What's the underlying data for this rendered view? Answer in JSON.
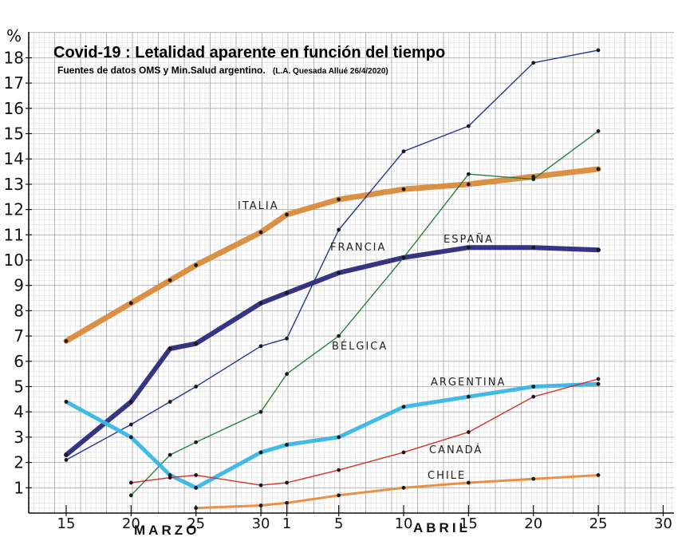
{
  "chart_data": {
    "type": "line",
    "title": "Covid-19 : Letalidad aparente en función del tiempo",
    "subtitle": "Fuentes de datos OMS y Min.Salud argentino.",
    "author_note": "(L.A. Quesada Allué 26/4/2020)",
    "ylabel": "%",
    "ylim": [
      0,
      18
    ],
    "yticks": [
      "1",
      "2",
      "3",
      "4",
      "5",
      "6",
      "7",
      "8",
      "9",
      "10",
      "11",
      "12",
      "13",
      "14",
      "15",
      "16",
      "17",
      "18"
    ],
    "xticks": [
      "15",
      "20",
      "25",
      "30",
      "1",
      "5",
      "10",
      "15",
      "20",
      "25",
      "30"
    ],
    "month_labels": [
      "MARZO",
      "ABRIL"
    ],
    "grid": true,
    "series": [
      {
        "name": "ITALIA",
        "color": "#d98a3a",
        "width": 7,
        "x": [
          "Mar 15",
          "Mar 20",
          "Mar 23",
          "Mar 25",
          "Mar 30",
          "Apr 1",
          "Apr 5",
          "Apr 10",
          "Apr 15",
          "Apr 20",
          "Apr 25"
        ],
        "values": [
          6.8,
          8.3,
          9.2,
          9.8,
          11.1,
          11.8,
          12.4,
          12.8,
          13.0,
          13.3,
          13.6
        ]
      },
      {
        "name": "ESPAÑA",
        "color": "#2b2a7c",
        "width": 6,
        "x": [
          "Mar 15",
          "Mar 20",
          "Mar 23",
          "Mar 25",
          "Mar 30",
          "Apr 1",
          "Apr 5",
          "Apr 10",
          "Apr 15",
          "Apr 20",
          "Apr 25"
        ],
        "values": [
          2.3,
          4.4,
          6.5,
          6.7,
          8.3,
          8.7,
          9.5,
          10.1,
          10.5,
          10.5,
          10.4
        ]
      },
      {
        "name": "FRANCIA",
        "color": "#1a2a8c",
        "width": 1.4,
        "x": [
          "Mar 15",
          "Mar 20",
          "Mar 23",
          "Mar 25",
          "Mar 30",
          "Apr 1",
          "Apr 5",
          "Apr 10",
          "Apr 15",
          "Apr 20",
          "Apr 25"
        ],
        "values": [
          2.1,
          3.5,
          4.4,
          5.0,
          6.6,
          6.9,
          11.2,
          14.3,
          15.3,
          17.8,
          18.3
        ]
      },
      {
        "name": "BÉLGICA",
        "color": "#1e7a3a",
        "width": 1.4,
        "x": [
          "Mar 20",
          "Mar 23",
          "Mar 25",
          "Mar 30",
          "Apr 1",
          "Apr 5",
          "Apr 10",
          "Apr 15",
          "Apr 20",
          "Apr 25"
        ],
        "values": [
          0.7,
          2.3,
          2.8,
          4.0,
          5.5,
          7.0,
          10.1,
          13.4,
          13.2,
          15.1
        ]
      },
      {
        "name": "ARGENTINA",
        "color": "#38b6e8",
        "width": 5,
        "x": [
          "Mar 15",
          "Mar 20",
          "Mar 23",
          "Mar 25",
          "Mar 30",
          "Apr 1",
          "Apr 5",
          "Apr 10",
          "Apr 15",
          "Apr 20",
          "Apr 25"
        ],
        "values": [
          4.4,
          3.0,
          1.5,
          1.0,
          2.4,
          2.7,
          3.0,
          4.2,
          4.6,
          5.0,
          5.1
        ]
      },
      {
        "name": "CANADÁ",
        "color": "#cc2a20",
        "width": 1.4,
        "x": [
          "Mar 20",
          "Mar 23",
          "Mar 25",
          "Mar 30",
          "Apr 1",
          "Apr 5",
          "Apr 10",
          "Apr 15",
          "Apr 20",
          "Apr 25"
        ],
        "values": [
          1.2,
          1.4,
          1.5,
          1.1,
          1.2,
          1.7,
          2.4,
          3.2,
          4.6,
          5.3
        ]
      },
      {
        "name": "CHILE",
        "color": "#ea8a3a",
        "width": 3,
        "x": [
          "Mar 25",
          "Mar 30",
          "Apr 1",
          "Apr 5",
          "Apr 10",
          "Apr 15",
          "Apr 20",
          "Apr 25"
        ],
        "values": [
          0.2,
          0.3,
          0.4,
          0.7,
          1.0,
          1.2,
          1.35,
          1.5
        ]
      }
    ]
  }
}
